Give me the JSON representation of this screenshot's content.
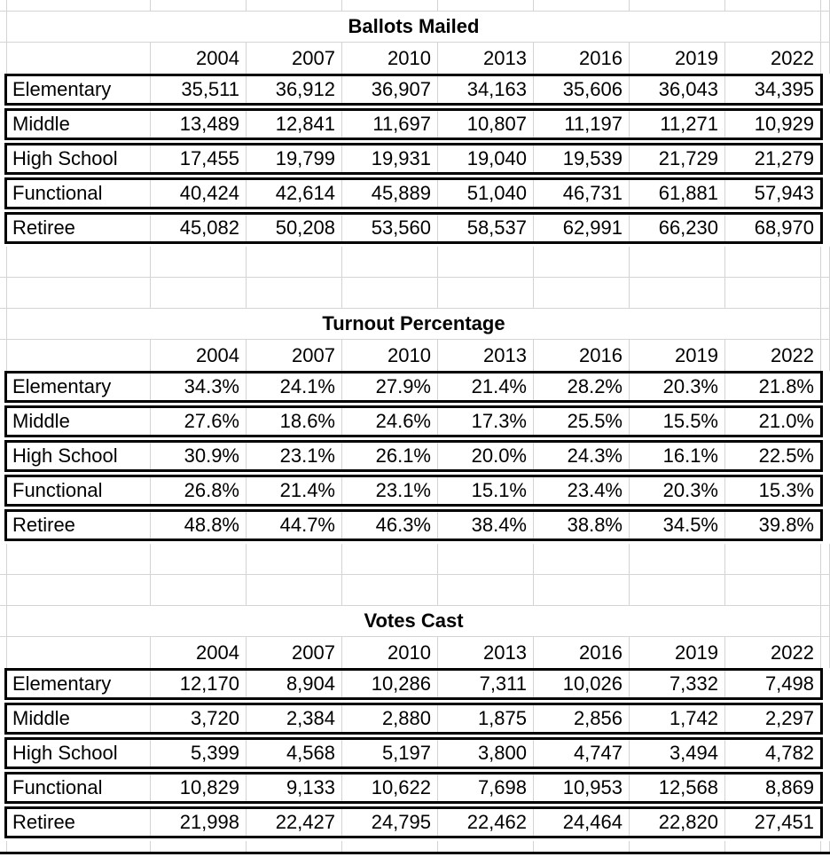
{
  "colors": {
    "background": "#ffffff",
    "gridline": "#d4d4d4",
    "table_border": "#000000",
    "text": "#000000"
  },
  "sheet": {
    "years": [
      "2004",
      "2007",
      "2010",
      "2013",
      "2016",
      "2019",
      "2022"
    ],
    "tables": [
      {
        "title": "Ballots Mailed",
        "rows": [
          {
            "label": "Elementary",
            "values": [
              "35,511",
              "36,912",
              "36,907",
              "34,163",
              "35,606",
              "36,043",
              "34,395"
            ]
          },
          {
            "label": "Middle",
            "values": [
              "13,489",
              "12,841",
              "11,697",
              "10,807",
              "11,197",
              "11,271",
              "10,929"
            ]
          },
          {
            "label": "High School",
            "values": [
              "17,455",
              "19,799",
              "19,931",
              "19,040",
              "19,539",
              "21,729",
              "21,279"
            ]
          },
          {
            "label": "Functional",
            "values": [
              "40,424",
              "42,614",
              "45,889",
              "51,040",
              "46,731",
              "61,881",
              "57,943"
            ]
          },
          {
            "label": "Retiree",
            "values": [
              "45,082",
              "50,208",
              "53,560",
              "58,537",
              "62,991",
              "66,230",
              "68,970"
            ]
          }
        ]
      },
      {
        "title": "Turnout Percentage",
        "rows": [
          {
            "label": "Elementary",
            "values": [
              "34.3%",
              "24.1%",
              "27.9%",
              "21.4%",
              "28.2%",
              "20.3%",
              "21.8%"
            ]
          },
          {
            "label": "Middle",
            "values": [
              "27.6%",
              "18.6%",
              "24.6%",
              "17.3%",
              "25.5%",
              "15.5%",
              "21.0%"
            ]
          },
          {
            "label": "High School",
            "values": [
              "30.9%",
              "23.1%",
              "26.1%",
              "20.0%",
              "24.3%",
              "16.1%",
              "22.5%"
            ]
          },
          {
            "label": "Functional",
            "values": [
              "26.8%",
              "21.4%",
              "23.1%",
              "15.1%",
              "23.4%",
              "20.3%",
              "15.3%"
            ]
          },
          {
            "label": "Retiree",
            "values": [
              "48.8%",
              "44.7%",
              "46.3%",
              "38.4%",
              "38.8%",
              "34.5%",
              "39.8%"
            ]
          }
        ]
      },
      {
        "title": "Votes Cast",
        "rows": [
          {
            "label": "Elementary",
            "values": [
              "12,170",
              "8,904",
              "10,286",
              "7,311",
              "10,026",
              "7,332",
              "7,498"
            ]
          },
          {
            "label": "Middle",
            "values": [
              "3,720",
              "2,384",
              "2,880",
              "1,875",
              "2,856",
              "1,742",
              "2,297"
            ]
          },
          {
            "label": "High School",
            "values": [
              "5,399",
              "4,568",
              "5,197",
              "3,800",
              "4,747",
              "3,494",
              "4,782"
            ]
          },
          {
            "label": "Functional",
            "values": [
              "10,829",
              "9,133",
              "10,622",
              "7,698",
              "10,953",
              "12,568",
              "8,869"
            ]
          },
          {
            "label": "Retiree",
            "values": [
              "21,998",
              "22,427",
              "24,795",
              "22,462",
              "24,464",
              "22,820",
              "27,451"
            ]
          }
        ]
      }
    ]
  }
}
